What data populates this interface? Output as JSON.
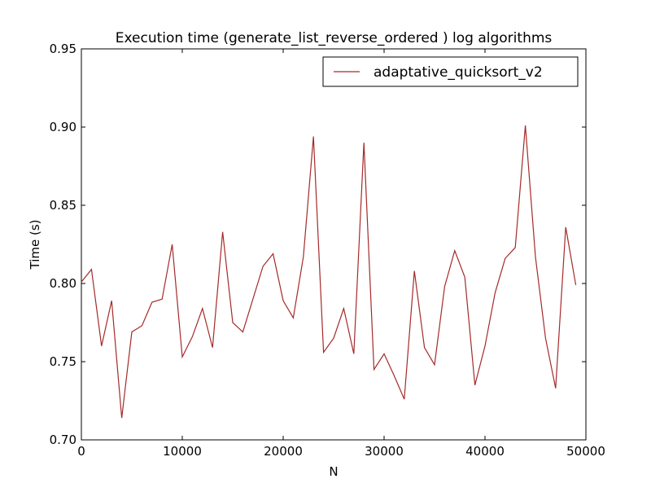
{
  "chart_data": {
    "type": "line",
    "title": "Execution time (generate_list_reverse_ordered ) log algorithms",
    "xlabel": "N",
    "ylabel": "Time (s)",
    "xlim": [
      0,
      50000
    ],
    "ylim": [
      0.7,
      0.95
    ],
    "xticks": [
      0,
      10000,
      20000,
      30000,
      40000,
      50000
    ],
    "xtick_labels": [
      "0",
      "10000",
      "20000",
      "30000",
      "40000",
      "50000"
    ],
    "yticks": [
      0.7,
      0.75,
      0.8,
      0.85,
      0.9,
      0.95
    ],
    "ytick_labels": [
      "0.70",
      "0.75",
      "0.80",
      "0.85",
      "0.90",
      "0.95"
    ],
    "grid": false,
    "legend_position": "top-right",
    "series": [
      {
        "name": "adaptative_quicksort_v2",
        "color": "#a52a2a",
        "x": [
          0,
          1000,
          2000,
          3000,
          4000,
          5000,
          6000,
          7000,
          8000,
          9000,
          10000,
          11000,
          12000,
          13000,
          14000,
          15000,
          16000,
          17000,
          18000,
          19000,
          20000,
          21000,
          22000,
          23000,
          24000,
          25000,
          26000,
          27000,
          28000,
          29000,
          30000,
          31000,
          32000,
          33000,
          34000,
          35000,
          36000,
          37000,
          38000,
          39000,
          40000,
          41000,
          42000,
          43000,
          44000,
          45000,
          46000,
          47000,
          48000,
          49000
        ],
        "y": [
          0.801,
          0.809,
          0.76,
          0.789,
          0.714,
          0.769,
          0.773,
          0.788,
          0.79,
          0.825,
          0.753,
          0.766,
          0.784,
          0.759,
          0.833,
          0.775,
          0.769,
          0.79,
          0.811,
          0.819,
          0.789,
          0.778,
          0.817,
          0.894,
          0.756,
          0.765,
          0.784,
          0.755,
          0.89,
          0.745,
          0.755,
          0.741,
          0.726,
          0.808,
          0.759,
          0.748,
          0.798,
          0.821,
          0.804,
          0.735,
          0.76,
          0.794,
          0.816,
          0.823,
          0.901,
          0.817,
          0.765,
          0.733,
          0.836,
          0.799
        ]
      }
    ]
  }
}
